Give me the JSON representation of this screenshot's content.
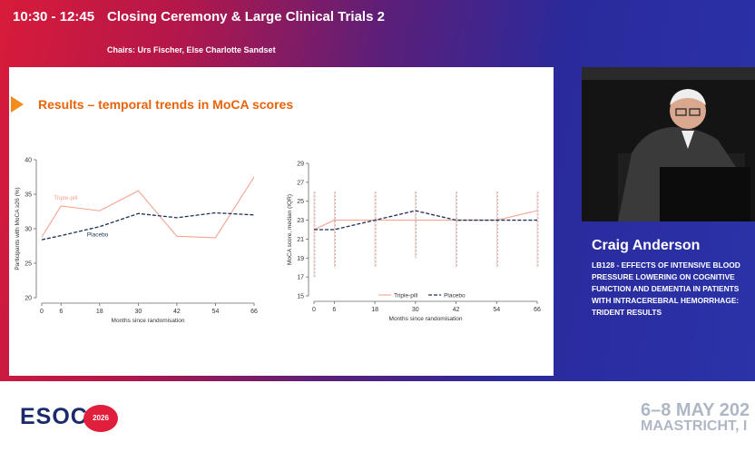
{
  "header": {
    "time": "10:30 - 12:45",
    "title": "Closing Ceremony & Large Clinical Trials 2",
    "chairs": "Chairs: Urs Fischer, Else Charlotte Sandset"
  },
  "slide": {
    "title": "Results – temporal trends in MoCA scores"
  },
  "speaker": {
    "name": "Craig Anderson",
    "talk_title": "LB128 - EFFECTS OF INTENSIVE BLOOD PRESSURE LOWERING ON COGNITIVE FUNCTION AND DEMENTIA IN PATIENTS WITH INTRACEREBRAL HEMORRHAGE: TRIDENT RESULTS"
  },
  "footer": {
    "logo_text": "ESOC",
    "logo_year": "2026",
    "dates": "6–8 MAY 202",
    "location": "MAASTRICHT, I"
  },
  "colors": {
    "triple_pill": "#f4a38f",
    "placebo": "#1c2f57",
    "accent": "#e8630a"
  },
  "chart_data": [
    {
      "type": "line",
      "ylabel": "Participants with MoCA ≥26 (%)",
      "xlabel": "Months since randomisation",
      "x": [
        0,
        6,
        18,
        30,
        42,
        54,
        66
      ],
      "x_ticks": [
        0,
        6,
        18,
        30,
        42,
        54,
        66
      ],
      "ylim": [
        20,
        40
      ],
      "y_ticks": [
        20,
        25,
        30,
        35,
        40
      ],
      "series": [
        {
          "name": "Triple-pill",
          "values": [
            28.8,
            33.3,
            32.6,
            35.5,
            28.9,
            28.7,
            37.5
          ]
        },
        {
          "name": "Placebo",
          "values": [
            28.4,
            29.0,
            30.3,
            32.2,
            31.6,
            32.3,
            32.0
          ]
        }
      ]
    },
    {
      "type": "line",
      "ylabel": "MoCA score, median (IQR)",
      "xlabel": "Months since randomisation",
      "x": [
        0,
        6,
        18,
        30,
        42,
        54,
        66
      ],
      "x_ticks": [
        0,
        6,
        18,
        30,
        42,
        54,
        66
      ],
      "ylim": [
        15,
        29
      ],
      "y_ticks": [
        15,
        17,
        19,
        21,
        23,
        25,
        27,
        29
      ],
      "legend": "bottom",
      "series": [
        {
          "name": "Triple-pill",
          "values": [
            22,
            23,
            23,
            23,
            23,
            23,
            24
          ]
        },
        {
          "name": "Placebo",
          "values": [
            22,
            22,
            23,
            24,
            23,
            23,
            23
          ]
        }
      ],
      "iqr": [
        [
          17,
          26
        ],
        [
          18,
          26
        ],
        [
          18,
          26
        ],
        [
          19,
          26
        ],
        [
          18,
          26
        ],
        [
          18,
          26
        ],
        [
          18,
          26
        ]
      ]
    }
  ]
}
